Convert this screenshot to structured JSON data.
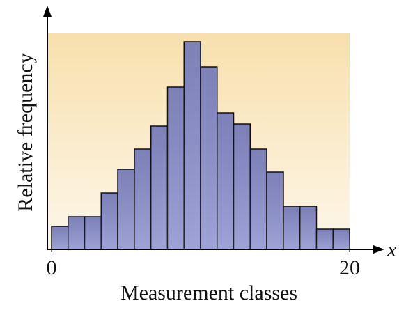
{
  "chart_data": {
    "type": "histogram",
    "xlabel": "Measurement classes",
    "ylabel": "Relative frequency",
    "x_axis_symbol": "x",
    "bins": [
      0,
      1.11,
      2.22,
      3.33,
      4.44,
      5.56,
      6.67,
      7.78,
      8.89,
      10,
      11.11,
      12.22,
      13.33,
      14.44,
      15.56,
      16.67,
      17.78,
      18.89,
      20
    ],
    "values": [
      33,
      47,
      47,
      81,
      115,
      144,
      177,
      233,
      298,
      262,
      196,
      180,
      144,
      111,
      62,
      62,
      29,
      29
    ],
    "color": "#8d92d0",
    "xlim": [
      0,
      20
    ],
    "xticks": [
      0,
      20
    ],
    "ylim": [
      0,
      338
    ]
  }
}
